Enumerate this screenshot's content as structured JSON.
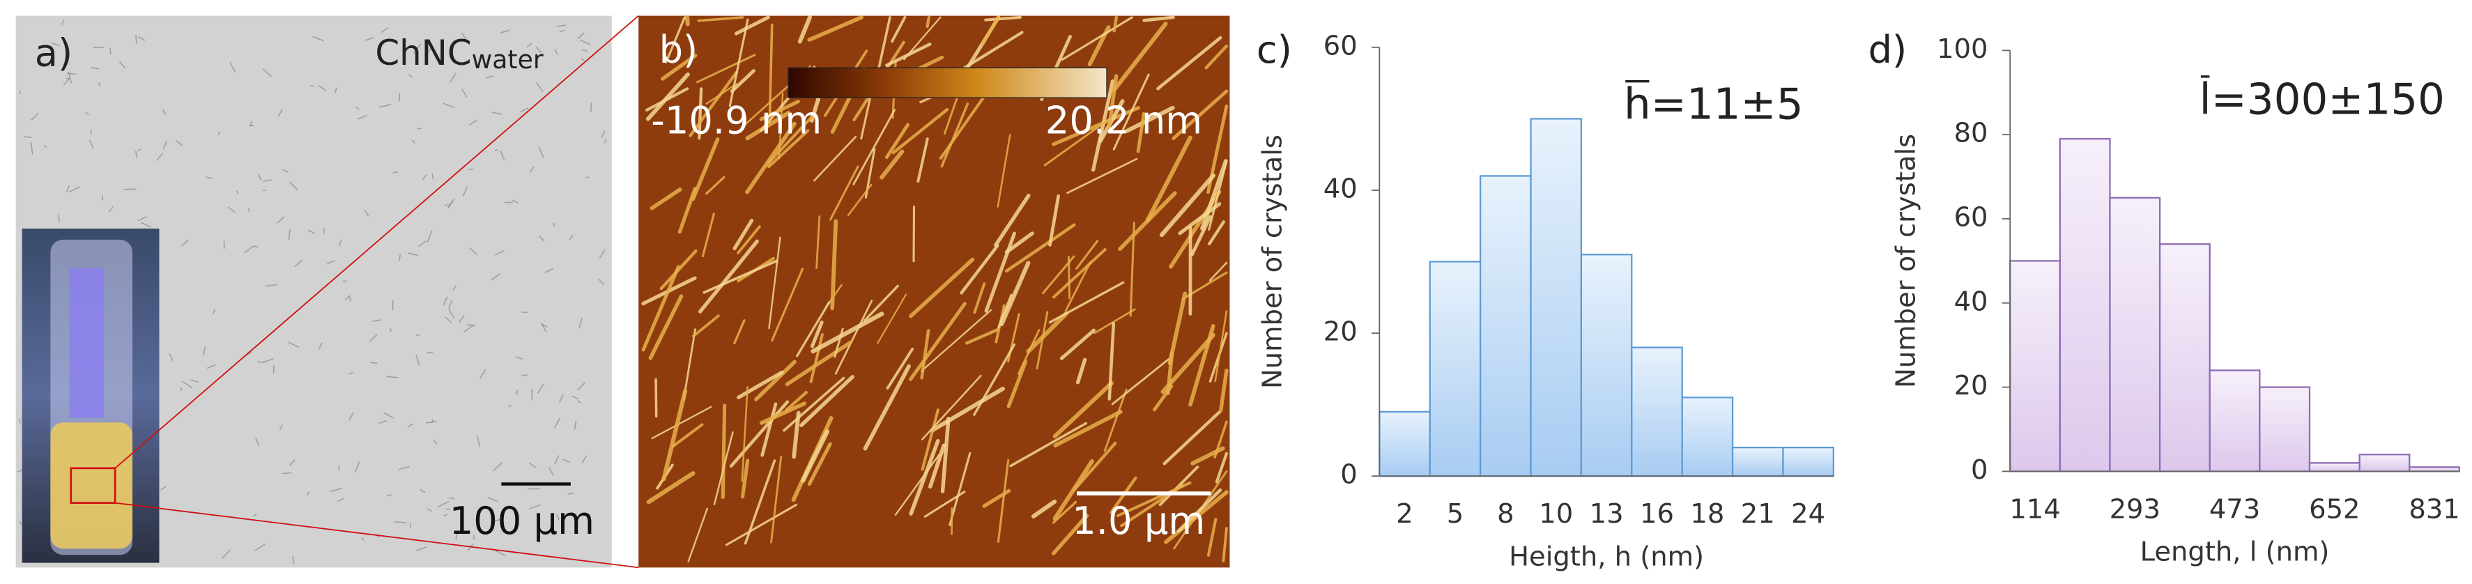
{
  "panels": {
    "a": {
      "label": "a)",
      "sample": "ChNC",
      "subscript": "water",
      "scale_bar": "100 µm"
    },
    "b": {
      "label": "b)",
      "colorbar_min": "-10.9 nm",
      "colorbar_max": "20.2 nm",
      "scale_bar": "1.0 µm"
    }
  },
  "chart_data": [
    {
      "type": "bar",
      "panel_label": "c)",
      "annotation": "h=11±5",
      "x_label": "Heigth, h (nm)",
      "y_label": "Number of crystals",
      "categories": [
        "2",
        "5",
        "8",
        "10",
        "13",
        "16",
        "18",
        "21",
        "24"
      ],
      "values": [
        9,
        30,
        42,
        50,
        31,
        18,
        11,
        4,
        4
      ],
      "color": "#a8ccf2",
      "edge_color": "#5b9bd5",
      "ylim": [
        0,
        60
      ],
      "yticks": [
        0,
        20,
        40,
        60
      ]
    },
    {
      "type": "bar",
      "panel_label": "d)",
      "annotation": "l=300±150",
      "x_label": "Length, l (nm)",
      "y_label": "Number of crystals",
      "categories": [
        "114",
        null,
        "293",
        null,
        "473",
        null,
        "652",
        null,
        "831"
      ],
      "values": [
        50,
        79,
        65,
        54,
        24,
        20,
        2,
        4,
        1
      ],
      "color": "#dcc8ec",
      "edge_color": "#8e6bb5",
      "ylim": [
        0,
        100
      ],
      "yticks": [
        0,
        20,
        40,
        60,
        80,
        100
      ]
    }
  ]
}
